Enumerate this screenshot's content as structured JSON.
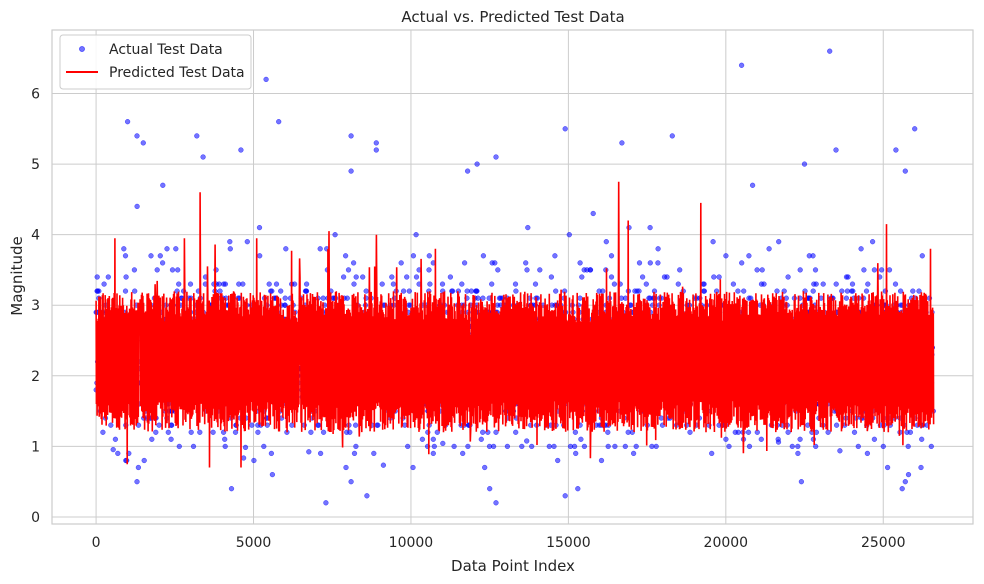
{
  "chart_data": {
    "type": "scatter",
    "title": "Actual vs. Predicted Test Data",
    "xlabel": "Data Point Index",
    "ylabel": "Magnitude",
    "xlim": [
      -1400,
      27850
    ],
    "ylim": [
      -0.1,
      6.9
    ],
    "xticks": [
      0,
      5000,
      10000,
      15000,
      20000,
      25000
    ],
    "xtick_labels": [
      "0",
      "5000",
      "10000",
      "15000",
      "20000",
      "25000"
    ],
    "yticks": [
      0,
      1,
      2,
      3,
      4,
      5,
      6
    ],
    "ytick_labels": [
      "0",
      "1",
      "2",
      "3",
      "4",
      "5",
      "6"
    ],
    "grid": true,
    "legend_position": "top-left",
    "n_points": 26600,
    "series": [
      {
        "name": "Actual Test Data",
        "kind": "scatter",
        "color": "#0000ff",
        "alpha": 0.55,
        "note_points": [
          [
            5400,
            6.2
          ],
          [
            23300,
            6.6
          ],
          [
            20500,
            6.4
          ],
          [
            5800,
            5.6
          ],
          [
            1000,
            5.6
          ],
          [
            1300,
            5.4
          ],
          [
            3200,
            5.4
          ],
          [
            8100,
            5.4
          ],
          [
            18300,
            5.4
          ],
          [
            14900,
            5.5
          ],
          [
            26000,
            5.5
          ],
          [
            8900,
            5.3
          ],
          [
            16700,
            5.3
          ],
          [
            23500,
            5.2
          ],
          [
            4600,
            5.2
          ],
          [
            25400,
            5.2
          ],
          [
            8900,
            5.2
          ],
          [
            12100,
            5.0
          ],
          [
            12700,
            5.1
          ],
          [
            3400,
            5.1
          ],
          [
            1500,
            5.3
          ],
          [
            11800,
            4.9
          ],
          [
            8100,
            4.9
          ],
          [
            25700,
            4.9
          ],
          [
            22500,
            5.0
          ],
          [
            7300,
            0.2
          ],
          [
            12700,
            0.2
          ],
          [
            8600,
            0.3
          ],
          [
            14900,
            0.3
          ],
          [
            12500,
            0.4
          ],
          [
            15300,
            0.4
          ],
          [
            4300,
            0.4
          ],
          [
            25600,
            0.4
          ],
          [
            25700,
            0.5
          ],
          [
            25800,
            0.6
          ],
          [
            22400,
            0.5
          ],
          [
            1300,
            0.5
          ],
          [
            8100,
            0.5
          ],
          [
            5600,
            0.6
          ],
          [
            26200,
            0.7
          ]
        ]
      },
      {
        "name": "Predicted Test Data",
        "kind": "line",
        "color": "#ff0000",
        "note_peaks": [
          [
            3300,
            4.6
          ],
          [
            16600,
            4.75
          ],
          [
            19200,
            4.45
          ],
          [
            25100,
            4.15
          ],
          [
            8900,
            4.0
          ],
          [
            7400,
            4.05
          ],
          [
            600,
            3.95
          ],
          [
            2800,
            3.95
          ],
          [
            5100,
            3.95
          ],
          [
            16900,
            4.2
          ],
          [
            26500,
            3.8
          ],
          [
            4600,
            0.7
          ],
          [
            3600,
            0.7
          ]
        ],
        "band": {
          "low": 1.2,
          "high": 3.2,
          "center": 2.3
        }
      }
    ]
  }
}
